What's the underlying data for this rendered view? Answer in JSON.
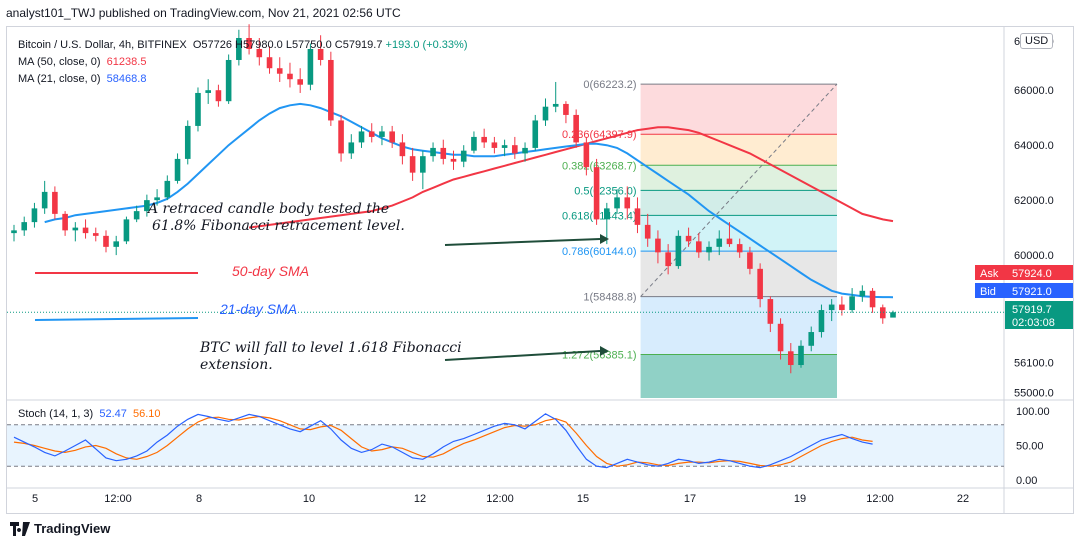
{
  "caption": "analyst101_TWJ published on TradingView.com, Nov 21, 2021 02:56 UTC",
  "currency_button": "USD",
  "legend": {
    "symbol": "Bitcoin / U.S. Dollar, 4h, BITFINEX",
    "ohlc": "O57726 H57980.0 L57750.0 C57919.7 ",
    "change": "+193.0 (+0.33%)",
    "ma50_label": "MA (50, close, 0)",
    "ma50_value": "61238.5",
    "ma21_label": "MA (21, close, 0)",
    "ma21_value": "58468.8"
  },
  "stoch_legend": {
    "label": "Stoch (14, 1, 3)",
    "k": "52.47",
    "d": "56.10"
  },
  "annotations": {
    "retrace_line1": "A retraced candle body tested the",
    "retrace_line2": "61.8% Fibonacci retracement level.",
    "sma50": "50-day SMA",
    "sma21": "21-day SMA",
    "fall_line1": "BTC will fall to  level 1.618 Fibonacci",
    "fall_line2": "extension."
  },
  "brand": "TradingView",
  "colors": {
    "up": "#089981",
    "down": "#f23645",
    "ma21": "#2196f3",
    "ma50": "#f23645",
    "k": "#2962ff",
    "d": "#ff6d00"
  },
  "chart_data": {
    "type": "candlestick",
    "title": "Bitcoin / U.S. Dollar, 4h, BITFINEX",
    "price_axis": {
      "ticks": [
        66000,
        64000,
        62000,
        60000,
        56100,
        55000
      ],
      "tick_labels": [
        "66000.0",
        "64000.0",
        "62000.0",
        "60000.0",
        "56100.0",
        "55000.0"
      ],
      "top_label": "68000.0",
      "range": [
        54800,
        68300
      ]
    },
    "x_ticks": [
      "5",
      "12:00",
      "8",
      "10",
      "12",
      "12:00",
      "15",
      "17",
      "19",
      "12:00",
      "22"
    ],
    "candles": [
      [
        60800,
        61100,
        60500,
        60900
      ],
      [
        60900,
        61400,
        60700,
        61200
      ],
      [
        61200,
        61900,
        61000,
        61700
      ],
      [
        61700,
        62700,
        61500,
        62300
      ],
      [
        62300,
        62500,
        61300,
        61500
      ],
      [
        61500,
        61600,
        60700,
        60900
      ],
      [
        60900,
        61200,
        60500,
        61000
      ],
      [
        61000,
        61300,
        60600,
        60800
      ],
      [
        60800,
        61000,
        60500,
        60700
      ],
      [
        60700,
        60900,
        60100,
        60300
      ],
      [
        60300,
        60700,
        60000,
        60500
      ],
      [
        60500,
        61400,
        60400,
        61300
      ],
      [
        61300,
        61800,
        61200,
        61600
      ],
      [
        61600,
        62200,
        61400,
        62000
      ],
      [
        62000,
        62400,
        61800,
        62100
      ],
      [
        62100,
        62900,
        62000,
        62700
      ],
      [
        62700,
        63700,
        62600,
        63500
      ],
      [
        63500,
        64900,
        63300,
        64700
      ],
      [
        64700,
        66100,
        64500,
        65900
      ],
      [
        65900,
        66400,
        65500,
        66000
      ],
      [
        66000,
        66200,
        65400,
        65600
      ],
      [
        65600,
        67300,
        65500,
        67100
      ],
      [
        67100,
        68200,
        66900,
        67900
      ],
      [
        67900,
        68400,
        67300,
        67500
      ],
      [
        67500,
        67900,
        66900,
        67200
      ],
      [
        67200,
        67600,
        66600,
        66800
      ],
      [
        66800,
        67200,
        66300,
        66600
      ],
      [
        66600,
        67000,
        66100,
        66400
      ],
      [
        66400,
        66800,
        65900,
        66200
      ],
      [
        66200,
        67700,
        66000,
        67500
      ],
      [
        67500,
        68000,
        66900,
        67100
      ],
      [
        67100,
        67400,
        64700,
        64900
      ],
      [
        64900,
        65100,
        63400,
        63700
      ],
      [
        63700,
        64400,
        63500,
        64100
      ],
      [
        64100,
        64700,
        63900,
        64500
      ],
      [
        64500,
        64800,
        64100,
        64300
      ],
      [
        64300,
        64700,
        64000,
        64500
      ],
      [
        64500,
        64700,
        63900,
        64100
      ],
      [
        64100,
        64400,
        63300,
        63600
      ],
      [
        63600,
        63900,
        62700,
        63000
      ],
      [
        63000,
        63800,
        62400,
        63600
      ],
      [
        63600,
        64100,
        63400,
        63900
      ],
      [
        63900,
        64200,
        63300,
        63500
      ],
      [
        63500,
        63800,
        63100,
        63400
      ],
      [
        63400,
        64000,
        63200,
        63800
      ],
      [
        63800,
        64500,
        63700,
        64300
      ],
      [
        64300,
        64600,
        63900,
        64100
      ],
      [
        64100,
        64300,
        63700,
        63900
      ],
      [
        63900,
        64200,
        63600,
        64000
      ],
      [
        64000,
        64300,
        63500,
        63700
      ],
      [
        63700,
        64100,
        63400,
        63900
      ],
      [
        63900,
        65100,
        63800,
        64900
      ],
      [
        64900,
        65700,
        64700,
        65400
      ],
      [
        65400,
        66300,
        65200,
        65500
      ],
      [
        65500,
        65600,
        64800,
        65100
      ],
      [
        65100,
        65300,
        63900,
        64100
      ],
      [
        64100,
        64300,
        62900,
        63200
      ],
      [
        63200,
        63500,
        61100,
        61300
      ],
      [
        61300,
        61900,
        60400,
        61700
      ],
      [
        61700,
        62400,
        61500,
        62100
      ],
      [
        62100,
        62500,
        61300,
        61700
      ],
      [
        61700,
        62100,
        60800,
        61100
      ],
      [
        61100,
        61500,
        60300,
        60600
      ],
      [
        60600,
        60900,
        59700,
        60100
      ],
      [
        60100,
        60400,
        59300,
        59600
      ],
      [
        59600,
        60900,
        59500,
        60700
      ],
      [
        60700,
        61000,
        60300,
        60500
      ],
      [
        60500,
        60800,
        59900,
        60100
      ],
      [
        60100,
        60500,
        59800,
        60300
      ],
      [
        60300,
        60900,
        60000,
        60600
      ],
      [
        60600,
        61200,
        60300,
        60400
      ],
      [
        60400,
        60600,
        59900,
        60100
      ],
      [
        60100,
        60300,
        59300,
        59500
      ],
      [
        59500,
        59700,
        58100,
        58400
      ],
      [
        58400,
        58500,
        57200,
        57500
      ],
      [
        57500,
        57700,
        56200,
        56500
      ],
      [
        56500,
        56800,
        55700,
        56000
      ],
      [
        56000,
        56900,
        55900,
        56700
      ],
      [
        56700,
        57400,
        56500,
        57200
      ],
      [
        57200,
        58200,
        57000,
        58000
      ],
      [
        58000,
        58400,
        57600,
        58200
      ],
      [
        58200,
        58500,
        57800,
        58000
      ],
      [
        58000,
        58800,
        57900,
        58500
      ],
      [
        58500,
        58900,
        58300,
        58700
      ],
      [
        58700,
        58800,
        57900,
        58100
      ],
      [
        58100,
        58200,
        57500,
        57700
      ],
      [
        57726,
        57980,
        57750,
        57919.7
      ]
    ],
    "ma21": [
      61200,
      61300,
      61350,
      61450,
      61500,
      61550,
      61600,
      61650,
      61700,
      61750,
      61800,
      61900,
      62050,
      62300,
      62600,
      62950,
      63300,
      63650,
      64000,
      64300,
      64600,
      64900,
      65150,
      65350,
      65450,
      65500,
      65450,
      65350,
      65200,
      65050,
      64850,
      64650,
      64450,
      64250,
      64100,
      63950,
      63850,
      63800,
      63750,
      63700,
      63650,
      63650,
      63600,
      63600,
      63600,
      63650,
      63700,
      63750,
      63800,
      63850,
      63900,
      63950,
      64000,
      64050,
      64050,
      64000,
      63900,
      63700,
      63450,
      63200,
      62950,
      62700,
      62450,
      62200,
      61900,
      61600,
      61350,
      61100,
      60850,
      60600,
      60350,
      60100,
      59850,
      59600,
      59350,
      59100,
      58900,
      58700,
      58600,
      58550,
      58500,
      58480,
      58470,
      58469
    ],
    "ma50": [
      61000,
      61050,
      61100,
      61150,
      61200,
      61250,
      61300,
      61350,
      61400,
      61450,
      61500,
      61550,
      61600,
      61700,
      61800,
      61950,
      62100,
      62300,
      62450,
      62600,
      62750,
      62850,
      62950,
      63050,
      63150,
      63250,
      63350,
      63450,
      63550,
      63650,
      63750,
      63850,
      63950,
      64050,
      64150,
      64250,
      64350,
      64450,
      64550,
      64600,
      64650,
      64650,
      64600,
      64550,
      64450,
      64300,
      64150,
      64000,
      63850,
      63700,
      63500,
      63300,
      63100,
      62900,
      62700,
      62500,
      62300,
      62100,
      61900,
      61700,
      61500,
      61400,
      61300,
      61238
    ],
    "fibonacci": {
      "levels": [
        {
          "ratio": "0",
          "price": 66223.2,
          "label": "0(66223.2)"
        },
        {
          "ratio": "0.236",
          "price": 64397.9,
          "label": "0.236(64397.9)"
        },
        {
          "ratio": "0.382",
          "price": 63268.7,
          "label": "0.382(63268.7)"
        },
        {
          "ratio": "0.5",
          "price": 62356.0,
          "label": "0.5(62356.0)"
        },
        {
          "ratio": "0.618",
          "price": 61443.4,
          "label": "0.618(61443.4)"
        },
        {
          "ratio": "0.786",
          "price": 60144.0,
          "label": "0.786(60144.0)"
        },
        {
          "ratio": "1",
          "price": 58488.8,
          "label": "1(58488.8)"
        },
        {
          "ratio": "1.272",
          "price": 56385.1,
          "label": "1.272(56385.1)"
        }
      ]
    },
    "price_labels": [
      {
        "tag": "Ask",
        "value": "57924.0",
        "color": "#f23645"
      },
      {
        "tag": "Bid",
        "value": "57921.0",
        "color": "#2962ff"
      },
      {
        "tag": "",
        "value": "57919.7",
        "sub": "02:03:08",
        "color": "#089981"
      }
    ],
    "stoch": {
      "ticks": [
        "100.00",
        "50.00",
        "0.00"
      ],
      "k": [
        62,
        55,
        48,
        40,
        35,
        42,
        50,
        58,
        45,
        32,
        28,
        30,
        35,
        42,
        55,
        65,
        78,
        88,
        95,
        92,
        88,
        85,
        90,
        95,
        92,
        86,
        80,
        74,
        70,
        78,
        86,
        74,
        58,
        46,
        40,
        44,
        52,
        48,
        40,
        32,
        30,
        38,
        48,
        56,
        60,
        66,
        72,
        78,
        82,
        80,
        74,
        85,
        96,
        88,
        72,
        50,
        30,
        20,
        18,
        24,
        30,
        26,
        22,
        20,
        24,
        30,
        28,
        24,
        26,
        30,
        28,
        24,
        20,
        18,
        22,
        28,
        34,
        42,
        50,
        58,
        62,
        66,
        60,
        55,
        52
      ],
      "d": [
        55,
        53,
        50,
        46,
        42,
        40,
        43,
        48,
        50,
        46,
        38,
        32,
        30,
        34,
        40,
        50,
        62,
        74,
        84,
        90,
        91,
        88,
        87,
        90,
        92,
        90,
        86,
        80,
        74,
        73,
        77,
        79,
        72,
        60,
        48,
        42,
        44,
        48,
        46,
        40,
        34,
        33,
        38,
        46,
        53,
        58,
        64,
        70,
        76,
        79,
        78,
        80,
        86,
        89,
        84,
        68,
        50,
        34,
        24,
        20,
        22,
        26,
        25,
        22,
        21,
        24,
        26,
        26,
        25,
        27,
        28,
        27,
        24,
        21,
        20,
        22,
        26,
        34,
        42,
        50,
        56,
        60,
        62,
        58,
        56
      ]
    }
  }
}
